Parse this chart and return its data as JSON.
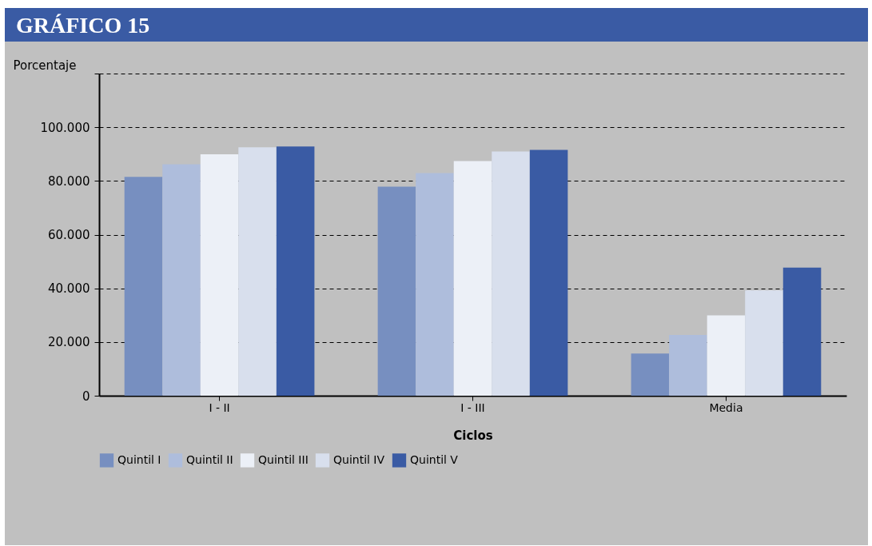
{
  "chart_data": {
    "type": "bar",
    "title": "GRÁFICO 15",
    "xlabel": "Ciclos",
    "ylabel": "Porcentaje",
    "categories": [
      "I - II",
      "I - III",
      "Media"
    ],
    "series": [
      {
        "name": "Quintil I",
        "color": "#778fc0",
        "values": [
          81500,
          77900,
          15700
        ]
      },
      {
        "name": "Quintil II",
        "color": "#aebddc",
        "values": [
          86200,
          82900,
          22600
        ]
      },
      {
        "name": "Quintil III",
        "color": "#ecf0f7",
        "values": [
          89900,
          87400,
          29900
        ]
      },
      {
        "name": "Quintil IV",
        "color": "#d8dfed",
        "values": [
          92500,
          91000,
          39200
        ]
      },
      {
        "name": "Quintil V",
        "color": "#3a5ba4",
        "values": [
          92800,
          91600,
          47700
        ]
      }
    ],
    "ylim": [
      0,
      120000
    ],
    "yticks": [
      0,
      {
        "value": 20000,
        "label": "20.000"
      },
      {
        "value": 40000,
        "label": "40.000"
      },
      {
        "value": 60000,
        "label": "60.000"
      },
      {
        "value": 80000,
        "label": "80.000"
      },
      {
        "value": 100000,
        "label": "100.000"
      },
      {
        "value": 120000,
        "label": null
      }
    ],
    "grid": "y",
    "legend": "bottom"
  }
}
